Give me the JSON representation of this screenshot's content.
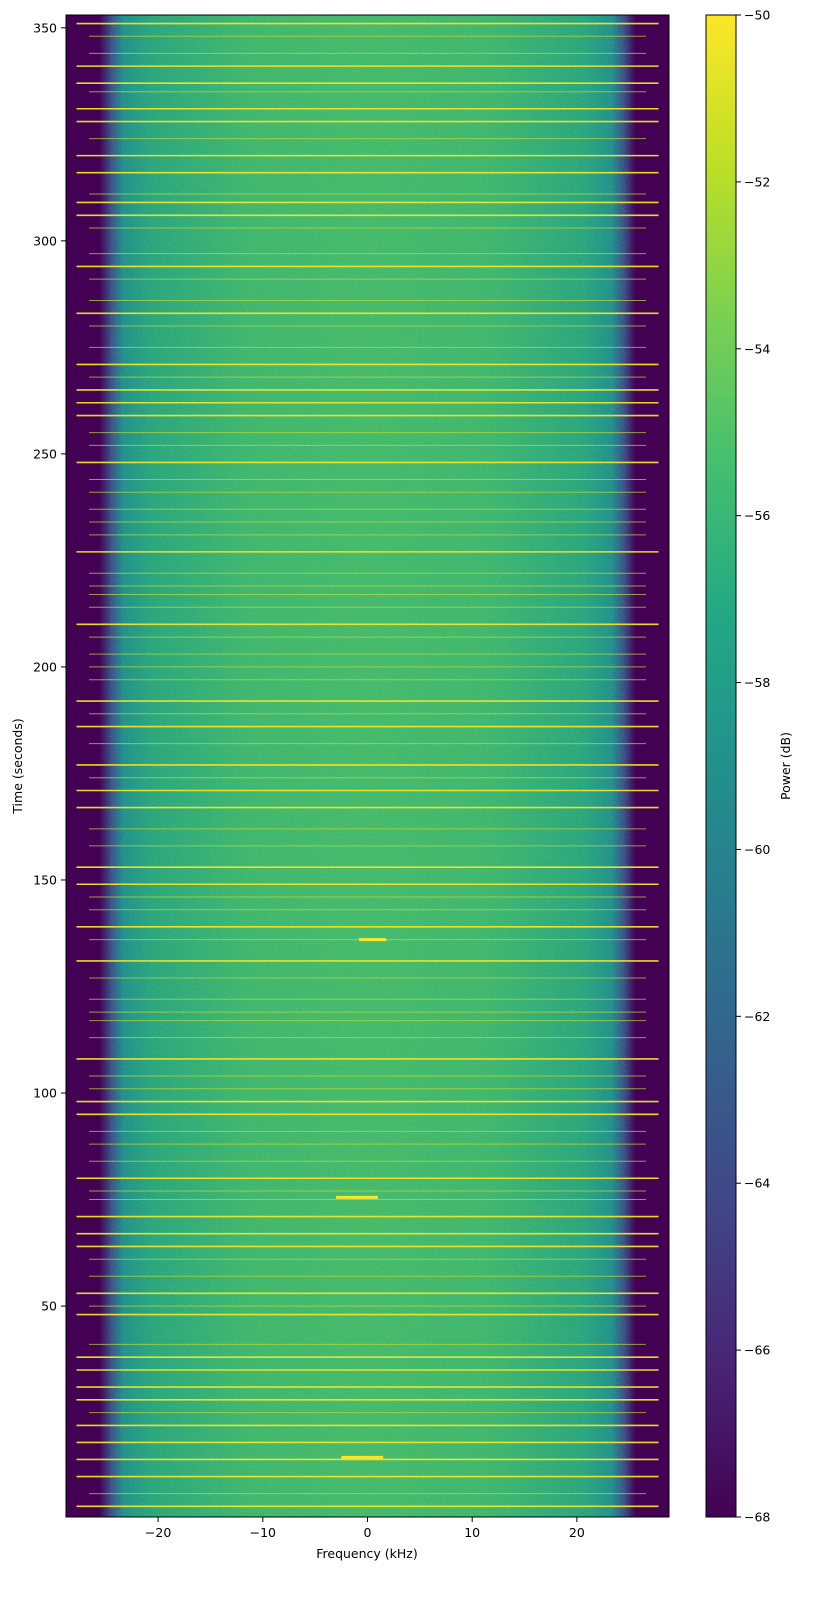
{
  "chart_data": {
    "type": "heatmap",
    "title": "",
    "xlabel": "Frequency (kHz)",
    "ylabel": "Time (seconds)",
    "xlim": [
      -28.8,
      28.8
    ],
    "ylim": [
      0.5,
      353
    ],
    "x_ticks": [
      -20,
      -10,
      0,
      10,
      20
    ],
    "x_tick_labels": [
      "−20",
      "−10",
      "0",
      "10",
      "20"
    ],
    "y_ticks": [
      50,
      100,
      150,
      200,
      250,
      300,
      350
    ],
    "y_tick_labels": [
      "50",
      "100",
      "150",
      "200",
      "250",
      "300",
      "350"
    ],
    "colormap": "viridis",
    "colorbar": {
      "label": "Power (dB)",
      "range": [
        -68,
        -50
      ],
      "ticks": [
        -68,
        -66,
        -64,
        -62,
        -60,
        -58,
        -56,
        -54,
        -52,
        -50
      ],
      "tick_labels": [
        "−68",
        "−66",
        "−64",
        "−62",
        "−60",
        "−58",
        "−56",
        "−54",
        "−52",
        "−50"
      ]
    },
    "floor_db": -68,
    "passband_khz": [
      -26,
      26
    ],
    "passband_center_level_db": -55.5,
    "bursts_time_s": [
      3,
      6,
      10,
      14,
      18,
      22,
      25,
      28,
      31,
      35,
      38,
      41,
      48,
      50,
      53,
      57,
      61,
      64,
      67,
      71,
      75,
      77,
      80,
      84,
      88,
      91,
      95,
      98,
      101,
      104,
      108,
      113,
      117,
      119,
      122,
      127,
      131,
      136,
      139,
      143,
      146,
      149,
      153,
      158,
      162,
      167,
      171,
      174,
      177,
      182,
      186,
      189,
      192,
      197,
      200,
      203,
      207,
      210,
      214,
      217,
      219,
      222,
      227,
      231,
      234,
      237,
      241,
      244,
      248,
      252,
      255,
      259,
      262,
      265,
      268,
      271,
      275,
      280,
      283,
      286,
      291,
      294,
      297,
      303,
      306,
      309,
      311,
      316,
      320,
      324,
      328,
      331,
      335,
      337,
      341,
      344,
      348,
      351
    ],
    "narrowband_spots": [
      {
        "time_s": 14.5,
        "freq_khz": [
          -2.5,
          1.5
        ]
      },
      {
        "time_s": 75.5,
        "freq_khz": [
          -3,
          1
        ]
      },
      {
        "time_s": 136,
        "freq_khz": [
          -0.8,
          1.8
        ]
      }
    ]
  }
}
